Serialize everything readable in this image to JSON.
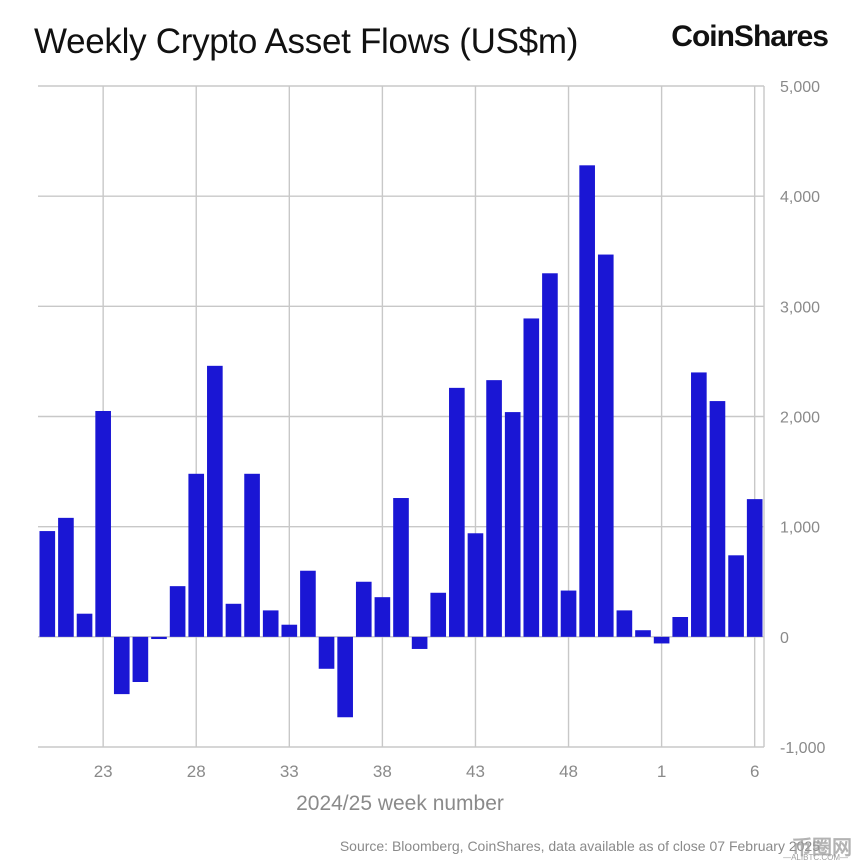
{
  "header": {
    "title": "Weekly Crypto Asset Flows (US$m)",
    "brand": "CoinShares"
  },
  "footer": {
    "source": "Source: Bloomberg, CoinShares, data available as of close 07 February 2025",
    "watermark": "币圈网",
    "watermark_sub": "—ALIBTC.COM—"
  },
  "colors": {
    "bar": "#1a16d4",
    "grid": "#c8c8c8",
    "axis_text": "#8a8a8a"
  },
  "chart_data": {
    "type": "bar",
    "title": "Weekly Crypto Asset Flows (US$m)",
    "xlabel": "2024/25 week number",
    "ylabel": "",
    "ylim": [
      -1000,
      5000
    ],
    "yticks": [
      -1000,
      0,
      1000,
      2000,
      3000,
      4000,
      5000
    ],
    "ytick_labels": [
      "-1,000",
      "0",
      "1,000",
      "2,000",
      "3,000",
      "4,000",
      "5,000"
    ],
    "y_axis_position": "right",
    "grid": true,
    "categories": [
      "20",
      "21",
      "22",
      "23",
      "24",
      "25",
      "26",
      "27",
      "28",
      "29",
      "30",
      "31",
      "32",
      "33",
      "34",
      "35",
      "36",
      "37",
      "38",
      "39",
      "40",
      "41",
      "42",
      "43",
      "44",
      "45",
      "46",
      "47",
      "48",
      "49",
      "50",
      "51",
      "52",
      "1",
      "2",
      "3",
      "4",
      "5",
      "6"
    ],
    "values": [
      960,
      1080,
      210,
      2050,
      -520,
      -410,
      -20,
      460,
      1480,
      2460,
      300,
      1480,
      240,
      110,
      600,
      -290,
      -730,
      500,
      360,
      1260,
      -110,
      400,
      2260,
      940,
      2330,
      2040,
      2890,
      3300,
      420,
      4280,
      3470,
      240,
      60,
      -60,
      180,
      2400,
      2140,
      740,
      1250
    ],
    "xtick_labels": [
      "23",
      "28",
      "33",
      "38",
      "43",
      "48",
      "1",
      "6"
    ]
  }
}
